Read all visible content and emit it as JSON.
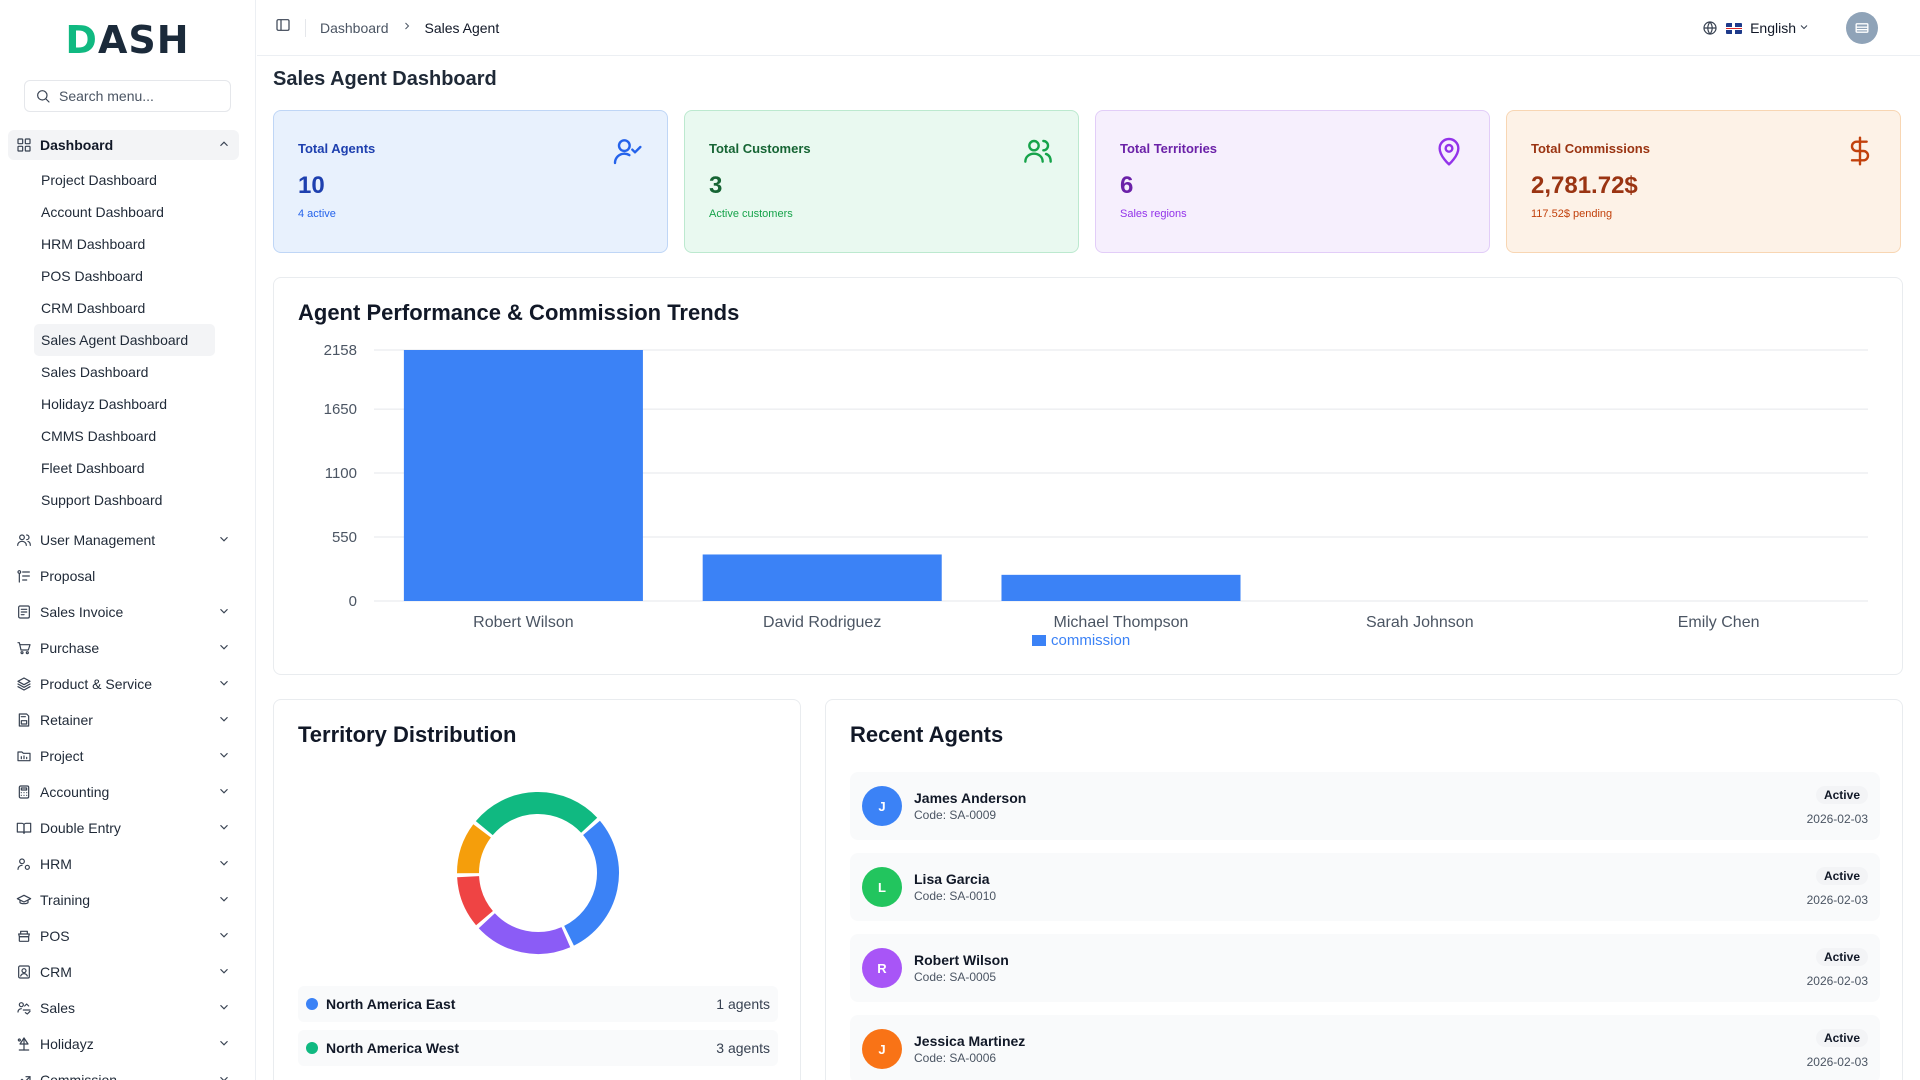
{
  "app": {
    "logo_prefix": "D",
    "logo_rest": "ASH"
  },
  "search": {
    "placeholder": "Search menu..."
  },
  "sidebar": {
    "dashboard_label": "Dashboard",
    "dashboard_items": [
      {
        "label": "Project Dashboard",
        "active": false
      },
      {
        "label": "Account Dashboard",
        "active": false
      },
      {
        "label": "HRM Dashboard",
        "active": false
      },
      {
        "label": "POS Dashboard",
        "active": false
      },
      {
        "label": "CRM Dashboard",
        "active": false
      },
      {
        "label": "Sales Agent Dashboard",
        "active": true
      },
      {
        "label": "Sales Dashboard",
        "active": false
      },
      {
        "label": "Holidayz Dashboard",
        "active": false
      },
      {
        "label": "CMMS Dashboard",
        "active": false
      },
      {
        "label": "Fleet Dashboard",
        "active": false
      },
      {
        "label": "Support Dashboard",
        "active": false
      }
    ],
    "items": [
      {
        "label": "User Management",
        "icon": "users-icon",
        "chevron": true
      },
      {
        "label": "Proposal",
        "icon": "proposal-icon",
        "chevron": false
      },
      {
        "label": "Sales Invoice",
        "icon": "invoice-icon",
        "chevron": true
      },
      {
        "label": "Purchase",
        "icon": "cart-icon",
        "chevron": true
      },
      {
        "label": "Product & Service",
        "icon": "layers-icon",
        "chevron": true
      },
      {
        "label": "Retainer",
        "icon": "retainer-icon",
        "chevron": true
      },
      {
        "label": "Project",
        "icon": "folder-icon",
        "chevron": true
      },
      {
        "label": "Accounting",
        "icon": "calculator-icon",
        "chevron": true
      },
      {
        "label": "Double Entry",
        "icon": "book-icon",
        "chevron": true
      },
      {
        "label": "HRM",
        "icon": "hrm-icon",
        "chevron": true
      },
      {
        "label": "Training",
        "icon": "graduation-icon",
        "chevron": true
      },
      {
        "label": "POS",
        "icon": "pos-icon",
        "chevron": true
      },
      {
        "label": "CRM",
        "icon": "crm-icon",
        "chevron": true
      },
      {
        "label": "Sales",
        "icon": "sales-icon",
        "chevron": true
      },
      {
        "label": "Holidayz",
        "icon": "holiday-icon",
        "chevron": true
      },
      {
        "label": "Commission",
        "icon": "trend-icon",
        "chevron": true
      }
    ]
  },
  "header": {
    "breadcrumb": [
      "Dashboard",
      "Sales Agent"
    ],
    "language": "English"
  },
  "main": {
    "title": "Sales Agent Dashboard",
    "cards": [
      {
        "title": "Total Agents",
        "value": "10",
        "sub": "4 active",
        "icon": "user-check-icon",
        "bg": "#e8f1fd",
        "border": "#bfd6f6",
        "color": "#1e40af",
        "sub_color": "#2563eb"
      },
      {
        "title": "Total Customers",
        "value": "3",
        "sub": "Active customers",
        "icon": "users-icon",
        "bg": "#e9f9f0",
        "border": "#bce9cf",
        "color": "#166534",
        "sub_color": "#16a34a"
      },
      {
        "title": "Total Territories",
        "value": "6",
        "sub": "Sales regions",
        "icon": "map-pin-icon",
        "bg": "#f6effd",
        "border": "#e2cdf8",
        "color": "#6b21a8",
        "sub_color": "#9333ea"
      },
      {
        "title": "Total Commissions",
        "value": "2,781.72$",
        "sub": "117.52$ pending",
        "icon": "dollar-icon",
        "bg": "#fdf2e7",
        "border": "#f8d6b3",
        "color": "#9a3412",
        "sub_color": "#c2410c"
      }
    ],
    "performance_title": "Agent Performance & Commission Trends",
    "territory_title": "Territory Distribution",
    "recent_title": "Recent Agents"
  },
  "chart_data": {
    "type": "bar",
    "title": "Agent Performance & Commission Trends",
    "categories": [
      "Robert Wilson",
      "David Rodriguez",
      "Michael Thompson",
      "Sarah Johnson",
      "Emily Chen"
    ],
    "series": [
      {
        "name": "commission",
        "values": [
          2158,
          400,
          225,
          0,
          0
        ],
        "color": "#3b82f6"
      }
    ],
    "y_ticks": [
      0,
      550,
      1100,
      1650,
      2158
    ],
    "ylim": [
      0,
      2158
    ],
    "grid": true,
    "legend": "bottom"
  },
  "territory_chart": {
    "type": "pie",
    "segments": [
      {
        "value": 3,
        "color": "#10b981"
      },
      {
        "value": 3.2,
        "color": "#3b82f6"
      },
      {
        "value": 2.2,
        "color": "#8b5cf6"
      },
      {
        "value": 1.2,
        "color": "#ef4444"
      },
      {
        "value": 1.2,
        "color": "#f59e0b"
      }
    ]
  },
  "territories": [
    {
      "name": "North America East",
      "count": "1 agents",
      "color": "#3b82f6"
    },
    {
      "name": "North America West",
      "count": "3 agents",
      "color": "#10b981"
    }
  ],
  "agents": [
    {
      "initial": "J",
      "name": "James Anderson",
      "code": "Code: SA-0009",
      "status": "Active",
      "date": "2026-02-03",
      "color": "#3b82f6"
    },
    {
      "initial": "L",
      "name": "Lisa Garcia",
      "code": "Code: SA-0010",
      "status": "Active",
      "date": "2026-02-03",
      "color": "#22c55e"
    },
    {
      "initial": "R",
      "name": "Robert Wilson",
      "code": "Code: SA-0005",
      "status": "Active",
      "date": "2026-02-03",
      "color": "#a855f7"
    },
    {
      "initial": "J",
      "name": "Jessica Martinez",
      "code": "Code: SA-0006",
      "status": "Active",
      "date": "2026-02-03",
      "color": "#f97316"
    }
  ]
}
